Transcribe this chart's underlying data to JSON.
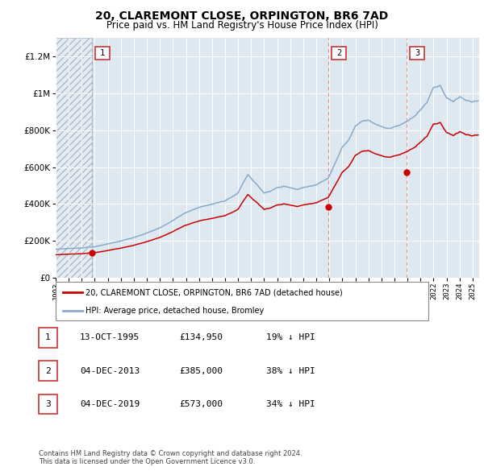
{
  "title": "20, CLAREMONT CLOSE, ORPINGTON, BR6 7AD",
  "subtitle": "Price paid vs. HM Land Registry's House Price Index (HPI)",
  "legend_line1": "20, CLAREMONT CLOSE, ORPINGTON, BR6 7AD (detached house)",
  "legend_line2": "HPI: Average price, detached house, Bromley",
  "footer1": "Contains HM Land Registry data © Crown copyright and database right 2024.",
  "footer2": "This data is licensed under the Open Government Licence v3.0.",
  "sale1_label": "1",
  "sale1_date": "13-OCT-1995",
  "sale1_price": "£134,950",
  "sale1_hpi": "19% ↓ HPI",
  "sale2_label": "2",
  "sale2_date": "04-DEC-2013",
  "sale2_price": "£385,000",
  "sale2_hpi": "38% ↓ HPI",
  "sale3_label": "3",
  "sale3_date": "04-DEC-2019",
  "sale3_price": "£573,000",
  "sale3_hpi": "34% ↓ HPI",
  "red_color": "#cc0000",
  "blue_color": "#88aacc",
  "bg_color": "#dde8f0",
  "grid_color": "#ffffff",
  "ylim": [
    0,
    1300000
  ],
  "yticks": [
    0,
    200000,
    400000,
    600000,
    800000,
    1000000,
    1200000
  ],
  "sale1_x": 1995.78,
  "sale1_y": 134950,
  "sale2_x": 2013.92,
  "sale2_y": 385000,
  "sale3_x": 2019.92,
  "sale3_y": 573000,
  "xmin": 1993.0,
  "xmax": 2025.5
}
